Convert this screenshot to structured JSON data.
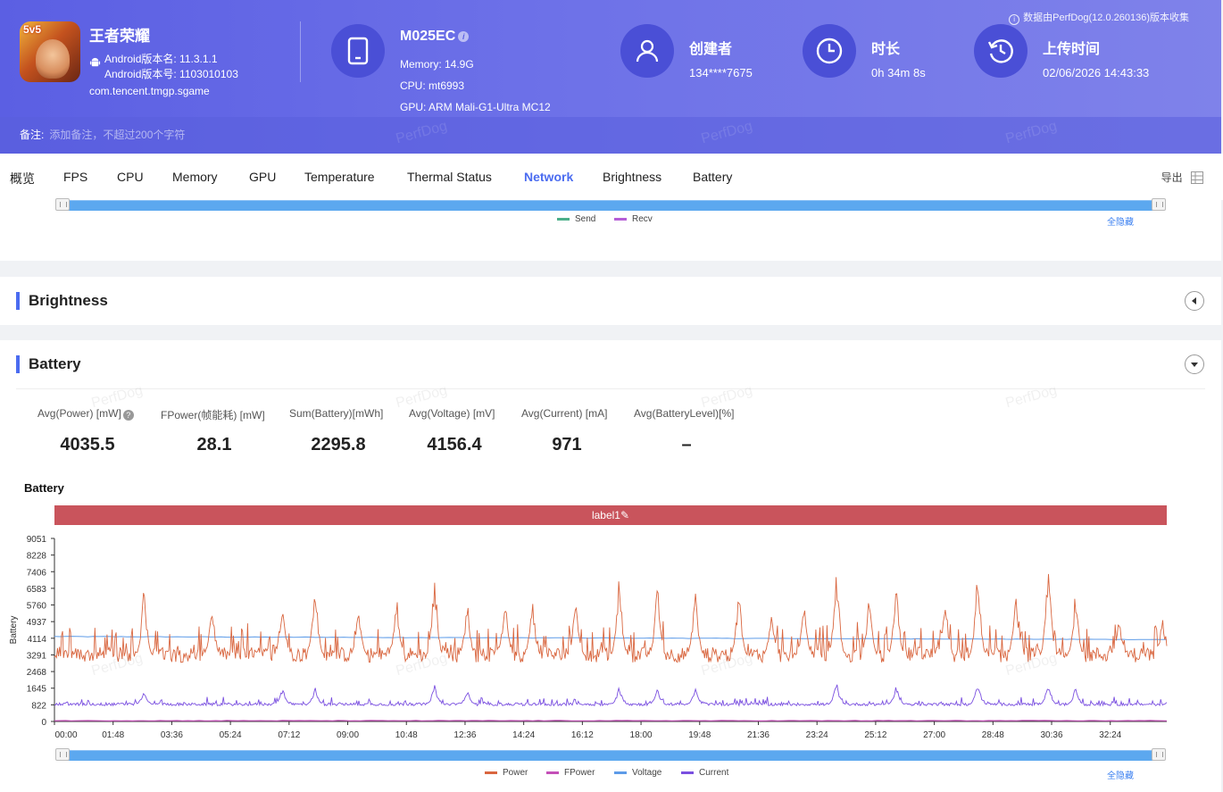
{
  "header": {
    "app_name": "王者荣耀",
    "app_icon_badge": "5v5",
    "version_name": "Android版本名: 11.3.1.1",
    "version_code": "Android版本号: 1103010103",
    "package": "com.tencent.tmgp.sgame",
    "device": {
      "model": "M025EC",
      "memory": "Memory: 14.9G",
      "cpu": "CPU: mt6993",
      "gpu": "GPU: ARM Mali-G1-Ultra MC12"
    },
    "creator": {
      "title": "创建者",
      "value": "134****7675"
    },
    "duration": {
      "title": "时长",
      "value": "0h 34m 8s"
    },
    "upload": {
      "title": "上传时间",
      "value": "02/06/2026 14:43:33"
    },
    "source_note": "数据由PerfDog(12.0.260136)版本收集",
    "remark_label": "备注:",
    "remark_placeholder": "添加备注，不超过200个字符"
  },
  "tabs": [
    "概览",
    "FPS",
    "CPU",
    "Memory",
    "GPU",
    "Temperature",
    "Thermal Status",
    "Network",
    "Brightness",
    "Battery"
  ],
  "active_tab": "Network",
  "export_label": "导出",
  "network": {
    "legend": [
      {
        "name": "Send",
        "color": "#4caf8a"
      },
      {
        "name": "Recv",
        "color": "#b55dd6"
      }
    ],
    "hide_all": "全隐藏"
  },
  "brightness": {
    "title": "Brightness"
  },
  "battery": {
    "title": "Battery",
    "stats": [
      {
        "label": "Avg(Power) [mW]",
        "value": "4035.5",
        "help": true
      },
      {
        "label": "FPower(帧能耗) [mW]",
        "value": "28.1"
      },
      {
        "label": "Sum(Battery)[mWh]",
        "value": "2295.8"
      },
      {
        "label": "Avg(Voltage) [mV]",
        "value": "4156.4"
      },
      {
        "label": "Avg(Current) [mA]",
        "value": "971"
      },
      {
        "label": "Avg(BatteryLevel)[%]",
        "value": "–"
      }
    ],
    "chart_title": "Battery",
    "label_marker": "label1",
    "hide_all": "全隐藏"
  },
  "watermark": "PerfDog",
  "colors": {
    "accent": "#4b6cf0",
    "header": "#5b5fe3",
    "power": "#d9663f",
    "fpower": "#c44fb8",
    "voltage": "#5d9be8",
    "current": "#7a4fe0"
  },
  "chart_data": {
    "type": "line",
    "title": "Battery",
    "ylabel": "Battery",
    "xlabel": "",
    "x_ticks": [
      "00:00",
      "01:48",
      "03:36",
      "05:24",
      "07:12",
      "09:00",
      "10:48",
      "12:36",
      "14:24",
      "16:12",
      "18:00",
      "19:48",
      "21:36",
      "23:24",
      "25:12",
      "27:00",
      "28:48",
      "30:36",
      "32:24"
    ],
    "y_ticks": [
      0,
      822,
      1645,
      2468,
      3291,
      4114,
      4937,
      5760,
      6583,
      7406,
      8228,
      9051
    ],
    "ylim": [
      0,
      9051
    ],
    "x_range_seconds": [
      0,
      2048
    ],
    "grid": false,
    "legend_position": "bottom",
    "series": [
      {
        "name": "Power",
        "color": "#d9663f",
        "baseline": 3300,
        "peaks": [
          [
            165,
            6900
          ],
          [
            290,
            6000
          ],
          [
            420,
            6600
          ],
          [
            480,
            7100
          ],
          [
            560,
            5800
          ],
          [
            630,
            6500
          ],
          [
            700,
            7600
          ],
          [
            760,
            6200
          ],
          [
            830,
            6600
          ],
          [
            880,
            6200
          ],
          [
            960,
            6500
          ],
          [
            1040,
            7600
          ],
          [
            1110,
            7100
          ],
          [
            1180,
            6800
          ],
          [
            1260,
            6800
          ],
          [
            1320,
            5600
          ],
          [
            1380,
            6000
          ],
          [
            1440,
            8000
          ],
          [
            1500,
            6500
          ],
          [
            1550,
            7000
          ],
          [
            1640,
            6400
          ],
          [
            1700,
            7900
          ],
          [
            1770,
            6800
          ],
          [
            1830,
            8200
          ],
          [
            1880,
            6700
          ],
          [
            1960,
            5400
          ],
          [
            2040,
            5200
          ]
        ]
      },
      {
        "name": "FPower",
        "color": "#c44fb8",
        "baseline": 28
      },
      {
        "name": "Voltage",
        "color": "#5d9be8",
        "start": 4200,
        "end": 4050
      },
      {
        "name": "Current",
        "color": "#7a4fe0",
        "baseline": 850,
        "peaks": [
          [
            165,
            1600
          ],
          [
            420,
            1700
          ],
          [
            480,
            1750
          ],
          [
            700,
            1900
          ],
          [
            760,
            1600
          ],
          [
            1040,
            1800
          ],
          [
            1110,
            1700
          ],
          [
            1180,
            1650
          ],
          [
            1440,
            2000
          ],
          [
            1550,
            1800
          ],
          [
            1700,
            1950
          ],
          [
            1830,
            1950
          ],
          [
            1880,
            1700
          ]
        ]
      }
    ]
  }
}
